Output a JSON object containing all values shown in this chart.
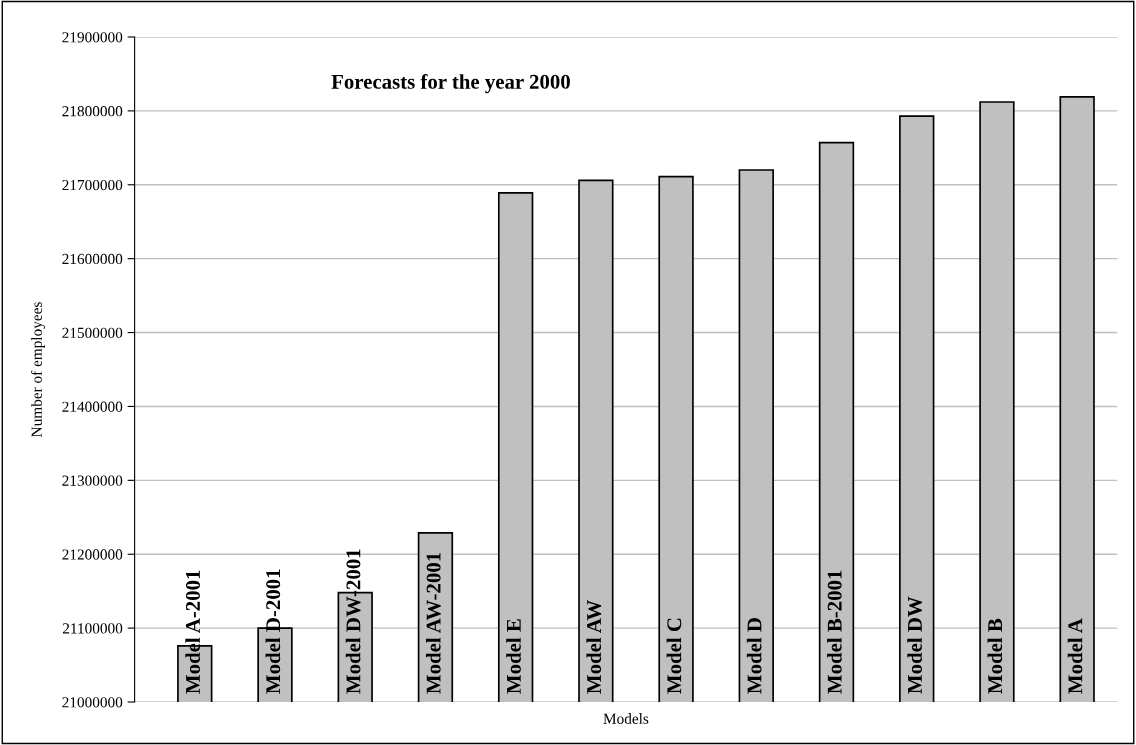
{
  "chart_data": {
    "type": "bar",
    "title": "Forecasts for the year 2000",
    "xlabel": "Models",
    "ylabel": "Number of employees",
    "categories": [
      "Model A-2001",
      "Model D-2001",
      "Model DW-2001",
      "Model AW-2001",
      "Model E",
      "Model AW",
      "Model C",
      "Model D",
      "Model B-2001",
      "Model DW",
      "Model B",
      "Model A"
    ],
    "values": [
      21076000,
      21100000,
      21148000,
      21229000,
      21689000,
      21706000,
      21711000,
      21720000,
      21757000,
      21793000,
      21812000,
      21819000
    ],
    "color": "#c0c0c0",
    "ylim": [
      21000000,
      21900000
    ],
    "yticks": [
      21000000,
      21100000,
      21200000,
      21300000,
      21400000,
      21500000,
      21600000,
      21700000,
      21800000,
      21900000
    ],
    "grid": "y"
  }
}
